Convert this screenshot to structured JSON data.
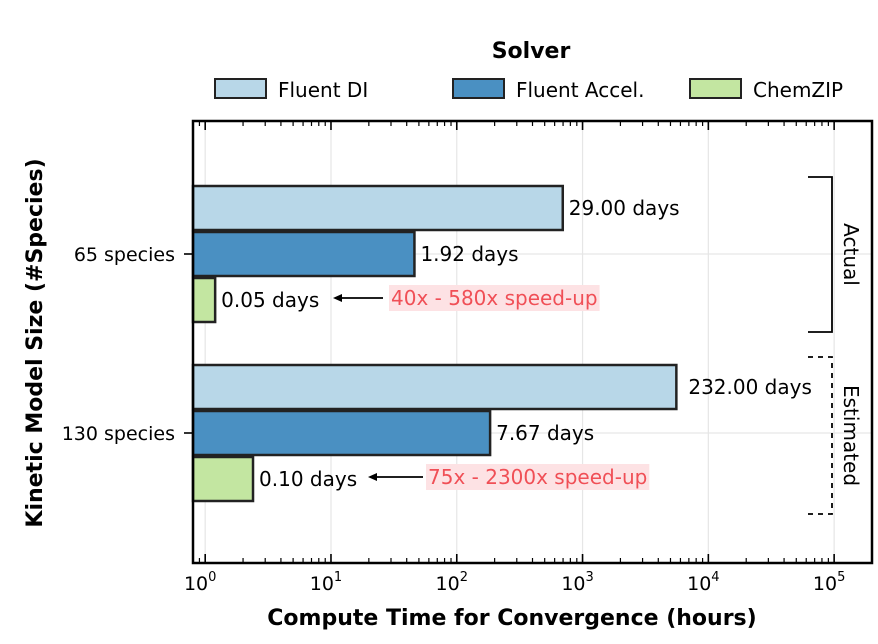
{
  "chart_data": {
    "type": "bar",
    "orientation": "horizontal",
    "categories": [
      "65 species",
      "130 species"
    ],
    "series": [
      {
        "name": "Fluent DI",
        "values": [
          696,
          5568
        ],
        "color": "#b8d7e8"
      },
      {
        "name": "Fluent Accel.",
        "values": [
          46.08,
          184.08
        ],
        "color": "#4a90c2"
      },
      {
        "name": "ChemZIP",
        "values": [
          1.2,
          2.4
        ],
        "color": "#c3e6a1"
      }
    ],
    "bar_labels": [
      [
        "29.00  days",
        "1.92 days",
        "0.05 days"
      ],
      [
        "232.00 days",
        "7.67 days",
        "0.10 days"
      ]
    ],
    "annotations": [
      "40x - 580x speed-up",
      "75x - 2300x speed-up"
    ],
    "brackets": [
      {
        "label": "Actual",
        "style": "solid"
      },
      {
        "label": "Estimated",
        "style": "dashed"
      }
    ],
    "legend_title": "Solver",
    "legend_position": "top",
    "xlabel": "Compute Time for Convergence (hours)",
    "ylabel": "Kinetic Model Size (#Species)",
    "xscale": "log",
    "xlim": [
      0.8,
      200000
    ],
    "xticks": [
      1,
      10,
      100,
      1000,
      10000,
      100000
    ],
    "xtick_labels": [
      {
        "base": "10",
        "exp": "0"
      },
      {
        "base": "10",
        "exp": "1"
      },
      {
        "base": "10",
        "exp": "2"
      },
      {
        "base": "10",
        "exp": "3"
      },
      {
        "base": "10",
        "exp": "4"
      },
      {
        "base": "10",
        "exp": "5"
      }
    ],
    "grid": true
  }
}
